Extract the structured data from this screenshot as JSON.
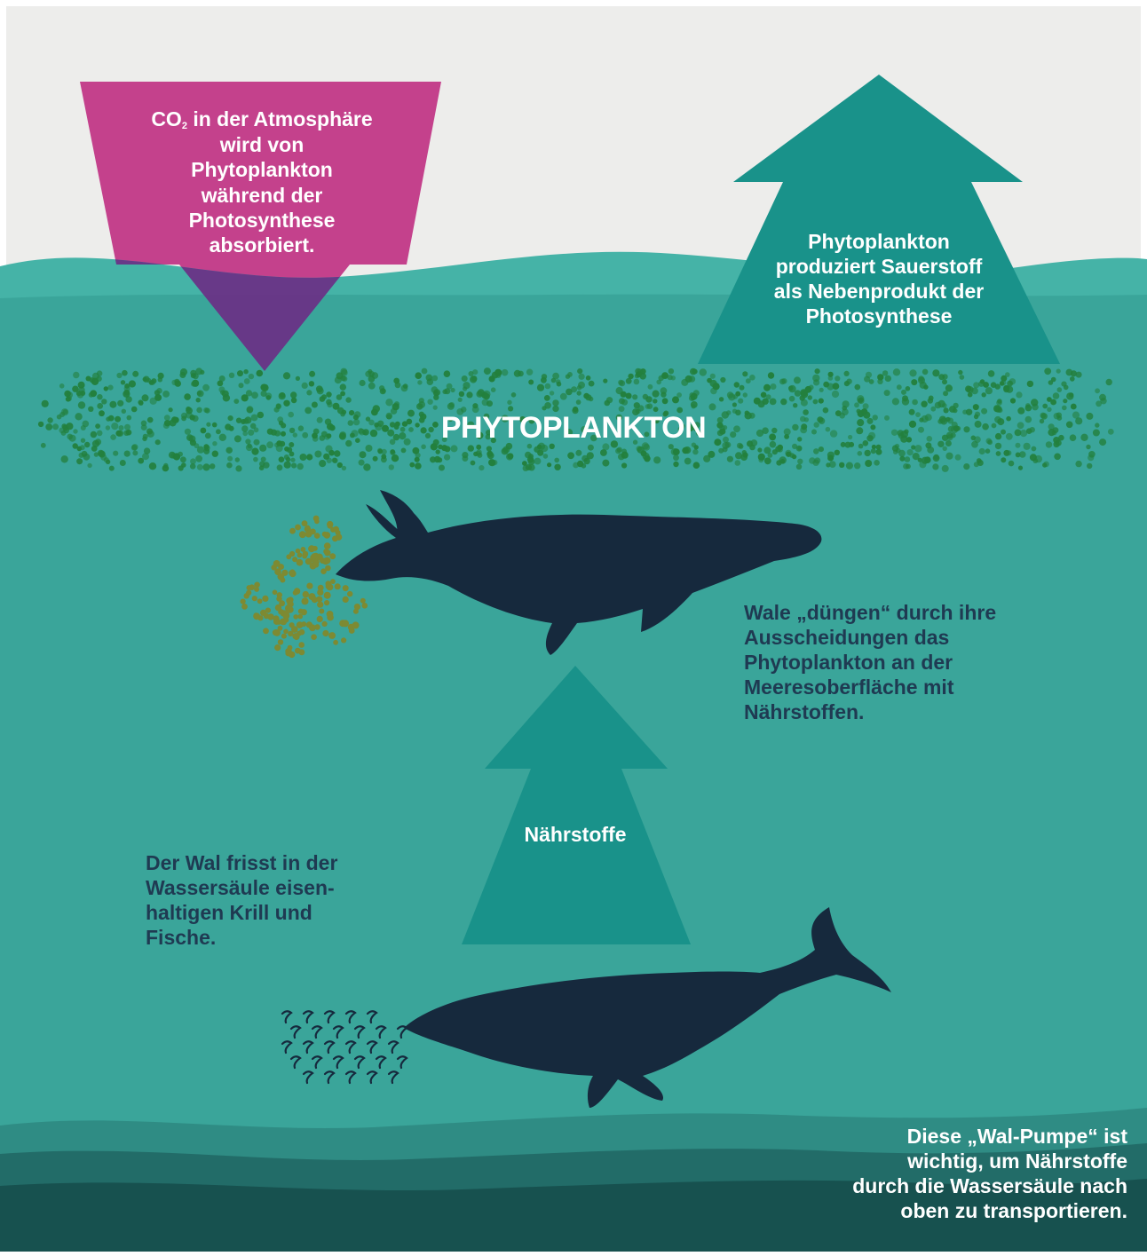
{
  "colors": {
    "sky": "#ededeb",
    "ocean": "#3aa59a",
    "ocean_surface": "#45b3a7",
    "ocean_deep_1": "#2f8c84",
    "ocean_deep_2": "#226c68",
    "ocean_deep_3": "#17514f",
    "co2_arrow": "#c4418c",
    "co2_arrow_underwater": "#6b2f86",
    "up_arrow": "#19928a",
    "phytoplankton_dot": "#23803d",
    "whale": "#16293d",
    "feces_dot": "#7d8a32",
    "text_dark": "#1f3a52",
    "text_light": "#ffffff"
  },
  "co2_arrow": {
    "prefix": "CO",
    "subscript": "2",
    "line1_rest": " in der Atmosphäre",
    "lines": [
      "wird von",
      "Phytoplankton",
      "während der",
      "Photosynthese",
      "absorbiert."
    ]
  },
  "oxygen_arrow": {
    "lines": [
      "Phytoplankton",
      "produziert Sauerstoff",
      "als Nebenprodukt der",
      "Photosynthese"
    ]
  },
  "phytoplankton_label": "PHYTOPLANKTON",
  "fertilize_text": {
    "lines": [
      "Wale „düngen“ durch ihre",
      "Ausscheidungen das",
      "Phytoplankton an der",
      "Meeresoberfläche mit",
      "Nährstoffen."
    ]
  },
  "nutrients_arrow": {
    "label": "Nährstoffe"
  },
  "feeding_text": {
    "lines": [
      "Der Wal frisst in der",
      "Wassersäule eisen-",
      "haltigen Krill und",
      "Fische."
    ]
  },
  "pump_text": {
    "lines": [
      "Diese „Wal-Pumpe“ ist",
      "wichtig, um Nährstoffe",
      "durch die Wassersäule nach",
      "oben zu transportieren."
    ]
  },
  "icons": {
    "co2_arrow": "down-arrow-icon",
    "oxygen_arrow": "up-arrow-icon",
    "nutrients_arrow": "up-arrow-icon",
    "whale_top": "humpback-whale-icon",
    "whale_bottom": "humpback-whale-icon",
    "krill": "krill-icon"
  }
}
